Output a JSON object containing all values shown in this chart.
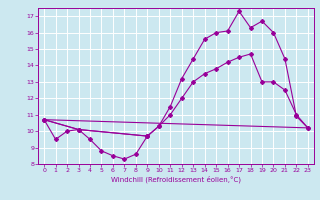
{
  "xlabel": "Windchill (Refroidissement éolien,°C)",
  "background_color": "#cce8f0",
  "line_color": "#990099",
  "grid_color": "#ffffff",
  "xlim": [
    -0.5,
    23.5
  ],
  "ylim": [
    8,
    17.5
  ],
  "xticks": [
    0,
    1,
    2,
    3,
    4,
    5,
    6,
    7,
    8,
    9,
    10,
    11,
    12,
    13,
    14,
    15,
    16,
    17,
    18,
    19,
    20,
    21,
    22,
    23
  ],
  "yticks": [
    8,
    9,
    10,
    11,
    12,
    13,
    14,
    15,
    16,
    17
  ],
  "series1_x": [
    0,
    1,
    2,
    3,
    4,
    5,
    6,
    7,
    8,
    9
  ],
  "series1_y": [
    10.7,
    9.5,
    10.0,
    10.1,
    9.5,
    8.8,
    8.5,
    8.3,
    8.6,
    9.7
  ],
  "series2_x": [
    0,
    3,
    9,
    10,
    11,
    12,
    13,
    14,
    15,
    16,
    17,
    18,
    19,
    20,
    21,
    22,
    23
  ],
  "series2_y": [
    10.7,
    10.1,
    9.7,
    10.3,
    11.5,
    13.2,
    14.4,
    15.6,
    16.0,
    16.1,
    17.3,
    16.3,
    16.7,
    16.0,
    14.4,
    10.9,
    10.2
  ],
  "series3_x": [
    0,
    23
  ],
  "series3_y": [
    10.7,
    10.2
  ],
  "series4_x": [
    0,
    3,
    9,
    10,
    11,
    12,
    13,
    14,
    15,
    16,
    17,
    18,
    19,
    20,
    21,
    22,
    23
  ],
  "series4_y": [
    10.7,
    10.1,
    9.7,
    10.3,
    11.0,
    12.0,
    13.0,
    13.5,
    13.8,
    14.2,
    14.5,
    14.7,
    13.0,
    13.0,
    12.5,
    11.0,
    10.2
  ]
}
